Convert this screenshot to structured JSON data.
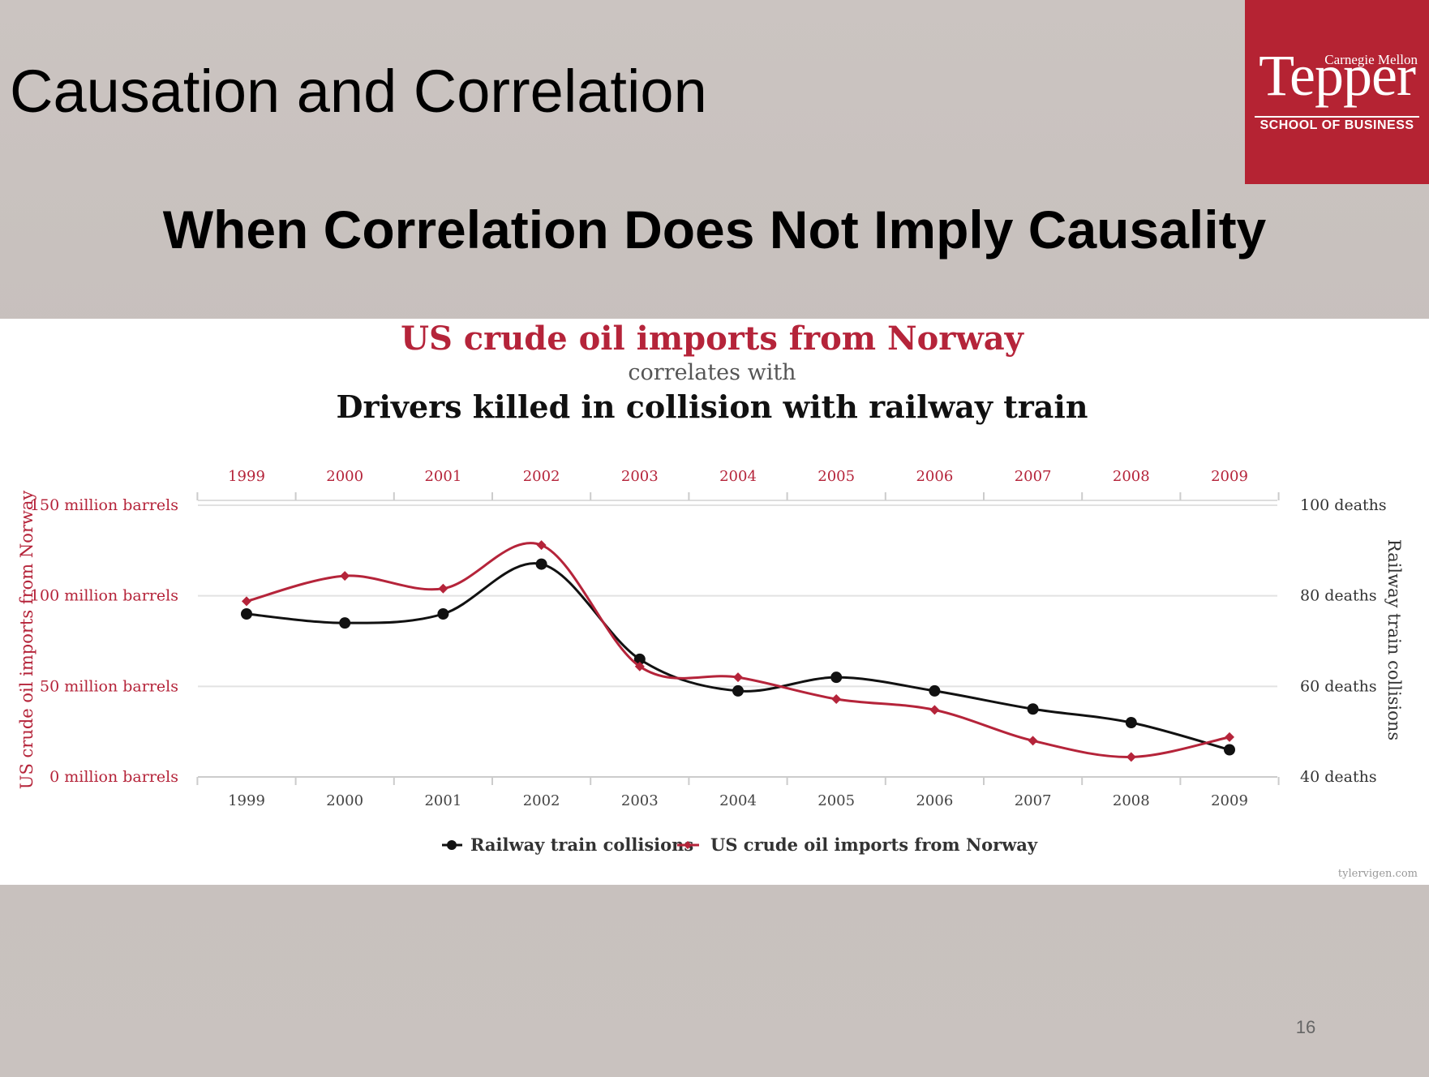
{
  "slide": {
    "title": "Causation and Correlation",
    "subtitle": "When Correlation Does Not Imply Causality",
    "page_number": "16",
    "logo": {
      "line1": "Carnegie Mellon",
      "line2": "Tepper",
      "line3": "SCHOOL OF BUSINESS"
    }
  },
  "colors": {
    "oil": "#b5243a",
    "rail": "#111111",
    "logo_bg": "#b52333",
    "grid": "#e2e2e2"
  },
  "chart_data": {
    "type": "line",
    "title": "US crude oil imports from Norway",
    "connector": "correlates with",
    "subtitle": "Drivers killed in collision with railway train",
    "x": [
      1999,
      2000,
      2001,
      2002,
      2003,
      2004,
      2005,
      2006,
      2007,
      2008,
      2009
    ],
    "x_tick_labels": [
      "1999",
      "2000",
      "2001",
      "2002",
      "2003",
      "2004",
      "2005",
      "2006",
      "2007",
      "2008",
      "2009"
    ],
    "y_left": {
      "label": "US crude oil imports from Norway",
      "range": [
        0,
        150
      ],
      "ticks": [
        0,
        50,
        100,
        150
      ],
      "tick_labels": [
        "0 million barrels",
        "50 million barrels",
        "100 million barrels",
        "150 million barrels"
      ]
    },
    "y_right": {
      "label": "Railway train collisions",
      "range": [
        40,
        100
      ],
      "ticks": [
        40,
        60,
        80,
        100
      ],
      "tick_labels": [
        "40 deaths",
        "60 deaths",
        "80 deaths",
        "100 deaths"
      ]
    },
    "series": [
      {
        "name": "Railway train collisions",
        "axis": "right",
        "marker": "circle",
        "values": [
          76,
          74,
          76,
          87,
          66,
          59,
          62,
          59,
          55,
          52,
          46
        ]
      },
      {
        "name": "US crude oil imports from Norway",
        "axis": "left",
        "marker": "diamond",
        "values": [
          97,
          111,
          104,
          128,
          61,
          55,
          43,
          37,
          20,
          11,
          22
        ]
      }
    ],
    "grid": true,
    "legend_position": "bottom-center",
    "source": "tylervigen.com"
  }
}
